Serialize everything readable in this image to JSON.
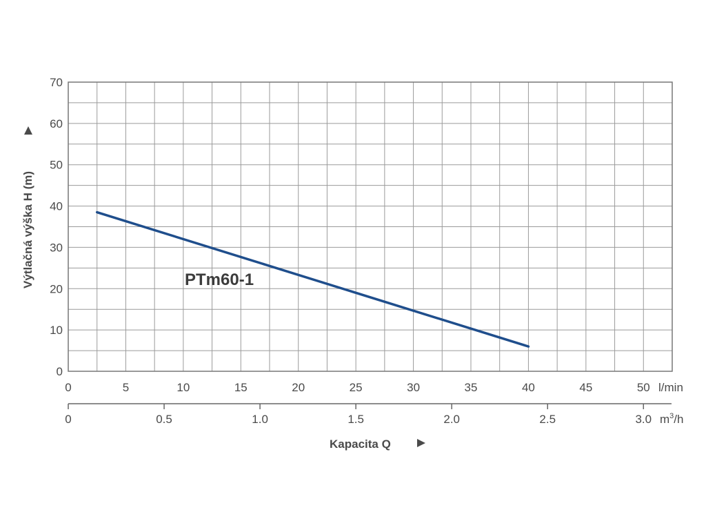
{
  "chart_data": {
    "type": "line",
    "ylabel": "Výtlačná výška H (m)",
    "xlabel": "Kapacita Q",
    "y_ticks": [
      "0",
      "10",
      "20",
      "30",
      "40",
      "50",
      "60",
      "70"
    ],
    "ylim": [
      0,
      70
    ],
    "x_primary": {
      "unit": "l/min",
      "ticks": [
        "0",
        "5",
        "10",
        "15",
        "20",
        "25",
        "30",
        "35",
        "40",
        "45",
        "50"
      ],
      "range": [
        0,
        52.5
      ]
    },
    "x_secondary": {
      "unit_base": "m",
      "unit_exp": "3",
      "unit_tail": "/h",
      "ticks": [
        "0",
        "0.5",
        "1.0",
        "1.5",
        "2.0",
        "2.5",
        "3.0"
      ],
      "range": [
        0,
        3.15
      ]
    },
    "grid": true,
    "series": [
      {
        "name": "PTm60-1",
        "color": "#1f4e8c",
        "x": [
          2.5,
          40
        ],
        "y": [
          38.5,
          6
        ]
      }
    ]
  }
}
